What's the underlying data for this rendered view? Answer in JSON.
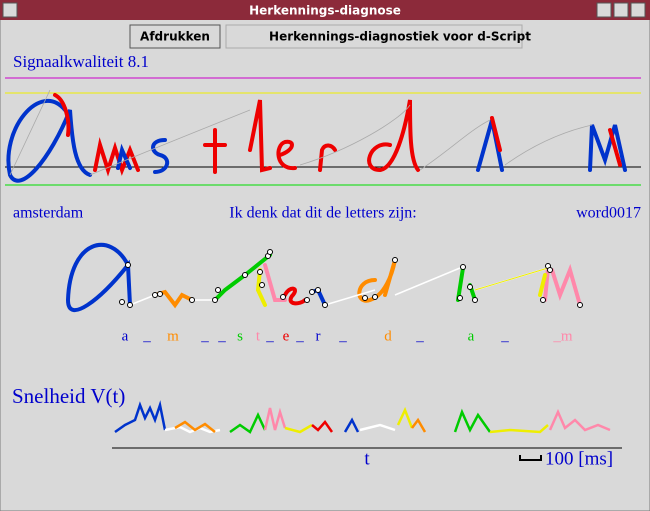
{
  "window": {
    "title": "Herkennings-diagnose"
  },
  "toolbar": {
    "button": "Afdrukken",
    "caption": "Herkennings-diagnostiek voor d-Script"
  },
  "panel": {
    "signal_quality": "Signaalkwaliteit 8.1",
    "word": "amsterdam",
    "prompt": "Ik denk dat dit de letters zijn:",
    "word_id": "word0017"
  },
  "letters": [
    {
      "text": "a",
      "color": "#0000cc"
    },
    {
      "text": "_",
      "color": "#0000cc"
    },
    {
      "text": "m",
      "color": "#ff8c00"
    },
    {
      "text": "_",
      "color": "#0000cc"
    },
    {
      "text": "_",
      "color": "#0000cc"
    },
    {
      "text": "s",
      "color": "#00cc00"
    },
    {
      "text": "t",
      "color": "#ff88aa"
    },
    {
      "text": "_",
      "color": "#0000cc"
    },
    {
      "text": "e",
      "color": "#ee0000"
    },
    {
      "text": "_",
      "color": "#0000cc"
    },
    {
      "text": "r",
      "color": "#0000cc"
    },
    {
      "text": "_",
      "color": "#0000cc"
    },
    {
      "text": "d",
      "color": "#ff8c00"
    },
    {
      "text": "_",
      "color": "#0000cc"
    },
    {
      "text": "a",
      "color": "#00cc00"
    },
    {
      "text": "_",
      "color": "#0000cc"
    },
    {
      "text": "_m",
      "color": "#ff88aa"
    }
  ],
  "speed": {
    "label": "Snelheid V(t)",
    "axis_label": "t",
    "scale_label": "100 [ms]"
  }
}
